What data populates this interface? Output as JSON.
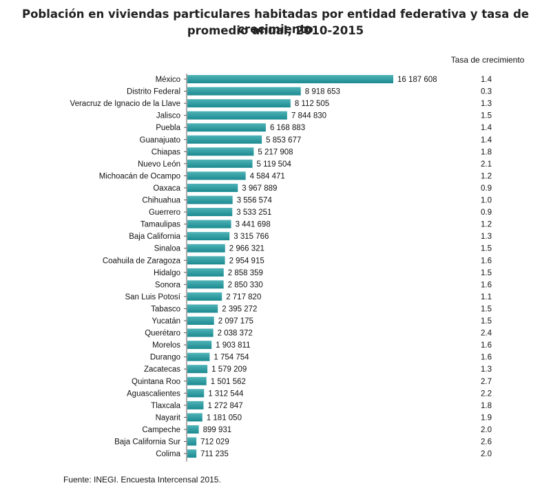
{
  "title_line1": "Población en viviendas particulares habitadas por entidad federativa y tasa de crecimiento",
  "title_line2": "promedio anual, 2010-2015",
  "rate_header": "Tasa de crecimiento",
  "source": "Fuente: INEGI. Encuesta Intercensal 2015.",
  "colors": {
    "bar_top": "#4fb3b7",
    "bar_bottom": "#1b8a90",
    "axis": "#555555"
  },
  "chart_data": {
    "type": "bar",
    "orientation": "horizontal",
    "title": "Población en viviendas particulares habitadas por entidad federativa y tasa de crecimiento promedio anual, 2010-2015",
    "categories": [
      "México",
      "Distrito Federal",
      "Veracruz de Ignacio de la Llave",
      "Jalisco",
      "Puebla",
      "Guanajuato",
      "Chiapas",
      "Nuevo León",
      "Michoacán de Ocampo",
      "Oaxaca",
      "Chihuahua",
      "Guerrero",
      "Tamaulipas",
      "Baja California",
      "Sinaloa",
      "Coahuila de Zaragoza",
      "Hidalgo",
      "Sonora",
      "San Luis Potosí",
      "Tabasco",
      "Yucatán",
      "Querétaro",
      "Morelos",
      "Durango",
      "Zacatecas",
      "Quintana Roo",
      "Aguascalientes",
      "Tlaxcala",
      "Nayarit",
      "Campeche",
      "Baja California Sur",
      "Colima"
    ],
    "values": [
      16187608,
      8918653,
      8112505,
      7844830,
      6168883,
      5853677,
      5217908,
      5119504,
      4584471,
      3967889,
      3556574,
      3533251,
      3441698,
      3315766,
      2966321,
      2954915,
      2858359,
      2850330,
      2717820,
      2395272,
      2097175,
      2038372,
      1903811,
      1754754,
      1579209,
      1501562,
      1312544,
      1272847,
      1181050,
      899931,
      712029,
      711235
    ],
    "value_labels": [
      "16 187 608",
      "8 918 653",
      "8 112 505",
      "7 844 830",
      "6 168 883",
      "5 853 677",
      "5 217 908",
      "5 119 504",
      "4 584 471",
      "3 967 889",
      "3 556 574",
      "3 533 251",
      "3 441 698",
      "3 315 766",
      "2 966 321",
      "2 954 915",
      "2 858 359",
      "2 850 330",
      "2 717 820",
      "2 395 272",
      "2 097 175",
      "2 038 372",
      "1 903 811",
      "1 754 754",
      "1 579 209",
      "1 501 562",
      "1 312 544",
      "1 272 847",
      "1 181 050",
      "899 931",
      "712 029",
      "711 235"
    ],
    "growth_rate": [
      "1.4",
      "0.3",
      "1.3",
      "1.5",
      "1.4",
      "1.4",
      "1.8",
      "2.1",
      "1.2",
      "0.9",
      "1.0",
      "0.9",
      "1.2",
      "1.3",
      "1.5",
      "1.6",
      "1.5",
      "1.6",
      "1.1",
      "1.5",
      "1.5",
      "2.4",
      "1.6",
      "1.6",
      "1.3",
      "2.7",
      "2.2",
      "1.8",
      "1.9",
      "2.0",
      "2.6",
      "2.0"
    ],
    "xlim": [
      0,
      16187608
    ],
    "grid": false,
    "legend": "none"
  }
}
